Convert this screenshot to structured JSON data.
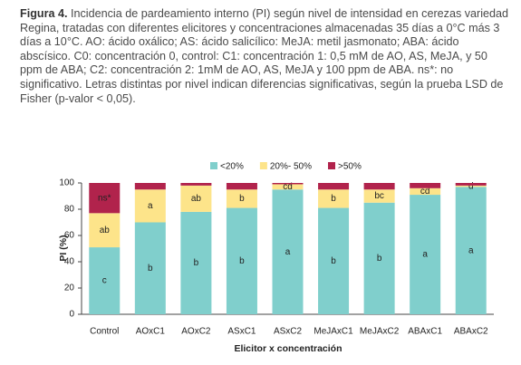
{
  "figure_label": "Figura 4.",
  "caption": "Incidencia de pardeamiento interno (PI) según nivel de intensidad en cerezas variedad Regina, tratadas con diferentes elicitores y concentraciones almacenadas 35 días a 0°C más 3 días a 10°C. AO: ácido oxálico; AS: ácido salicílico: MeJA: metil jasmonato; ABA: ácido abscísico. C0: concentración 0, control: C1: concentración 1: 0,5 mM de AO, AS, MeJA, y 50 ppm de ABA; C2: concentración 2: 1mM de AO, AS, MeJA y 100 ppm de ABA. ns*: no significativo. Letras distintas por nivel indican diferencias significativas, según la prueba LSD de Fisher (p-valor < 0,05).",
  "chart_data": {
    "type": "stacked_bar",
    "xlabel": "Elicitor x concentración",
    "ylabel": "PI (%)",
    "categories": [
      "Control",
      "AOxC1",
      "AOxC2",
      "ASxC1",
      "ASxC2",
      "MeJAxC1",
      "MeJAxC2",
      "ABAxC1",
      "ABAxC2"
    ],
    "series": [
      {
        "name": "<20%",
        "color": "#80cfcc",
        "values": [
          51,
          70,
          78,
          81,
          95,
          81,
          85,
          91,
          97
        ],
        "segment_labels": [
          "c",
          "b",
          "b",
          "b",
          "a",
          "b",
          "b",
          "a",
          "a"
        ]
      },
      {
        "name": "20%- 50%",
        "color": "#fde48a",
        "values": [
          26,
          25,
          20,
          14,
          4,
          14,
          10,
          5,
          1
        ],
        "segment_labels": [
          "ab",
          "a",
          "ab",
          "b",
          "cd",
          "b",
          "bc",
          "cd",
          "d"
        ]
      },
      {
        "name": ">50%",
        "color": "#b1234c",
        "values": [
          23,
          5,
          2,
          5,
          1,
          5,
          5,
          4,
          2
        ],
        "segment_labels": [
          "ns*",
          null,
          null,
          null,
          null,
          null,
          null,
          null,
          null
        ]
      }
    ],
    "ylim": [
      0,
      100
    ],
    "yticks": [
      0,
      20,
      40,
      60,
      80,
      100
    ],
    "legend": "top"
  }
}
